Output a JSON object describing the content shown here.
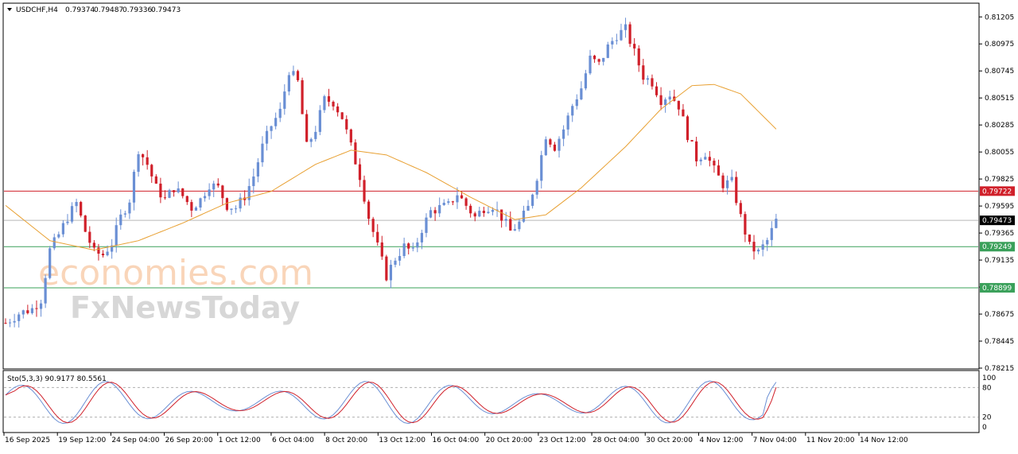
{
  "header": {
    "symbol": "USDCHF,H4",
    "open": "0.79374",
    "high": "0.79487",
    "low": "0.79336",
    "close": "0.79473"
  },
  "watermark": {
    "line1": "economies.com",
    "line2": "FxNewsToday"
  },
  "colors": {
    "bull": "#6a8fd4",
    "bear": "#d0202a",
    "ma": "#e8a032",
    "resistance": "#d0202a",
    "support": "#3aa05a",
    "current": "#000000",
    "stoch_main": "#6a8fd4",
    "stoch_signal": "#d0202a",
    "grid_border": "#000000"
  },
  "chart_data": [
    {
      "type": "candlestick",
      "symbol": "USDCHF",
      "timeframe": "H4",
      "ylim": [
        0.78215,
        0.81315
      ],
      "y_ticks": [
        "0.81205",
        "0.80975",
        "0.80745",
        "0.80515",
        "0.80285",
        "0.80055",
        "0.79825",
        "0.79595",
        "0.79365",
        "0.79135",
        "0.78905",
        "0.78675",
        "0.78445",
        "0.78215"
      ],
      "x_ticks": [
        "16 Sep 2025",
        "19 Sep 12:00",
        "24 Sep 04:00",
        "26 Sep 20:00",
        "1 Oct 12:00",
        "6 Oct 04:00",
        "8 Oct 20:00",
        "13 Oct 12:00",
        "16 Oct 04:00",
        "20 Oct 20:00",
        "23 Oct 12:00",
        "28 Oct 04:00",
        "30 Oct 20:00",
        "4 Nov 12:00",
        "7 Nov 04:00",
        "11 Nov 20:00",
        "14 Nov 12:00"
      ],
      "close_path": [
        [
          0,
          0.786
        ],
        [
          3,
          0.7868
        ],
        [
          6,
          0.7872
        ],
        [
          8,
          0.788
        ],
        [
          10,
          0.7922
        ],
        [
          12,
          0.7935
        ],
        [
          14,
          0.795
        ],
        [
          16,
          0.7962
        ],
        [
          18,
          0.7938
        ],
        [
          20,
          0.792
        ],
        [
          22,
          0.7918
        ],
        [
          24,
          0.7928
        ],
        [
          26,
          0.795
        ],
        [
          28,
          0.7965
        ],
        [
          30,
          0.8008
        ],
        [
          32,
          0.7995
        ],
        [
          34,
          0.7975
        ],
        [
          36,
          0.7965
        ],
        [
          38,
          0.7975
        ],
        [
          40,
          0.7968
        ],
        [
          42,
          0.7958
        ],
        [
          44,
          0.7965
        ],
        [
          46,
          0.7978
        ],
        [
          48,
          0.7975
        ],
        [
          50,
          0.796
        ],
        [
          52,
          0.7958
        ],
        [
          54,
          0.7968
        ],
        [
          56,
          0.7985
        ],
        [
          58,
          0.801
        ],
        [
          60,
          0.8028
        ],
        [
          62,
          0.804
        ],
        [
          64,
          0.8075
        ],
        [
          66,
          0.8065
        ],
        [
          68,
          0.801
        ],
        [
          70,
          0.8025
        ],
        [
          72,
          0.805
        ],
        [
          74,
          0.8048
        ],
        [
          76,
          0.8035
        ],
        [
          78,
          0.801
        ],
        [
          80,
          0.7985
        ],
        [
          82,
          0.795
        ],
        [
          84,
          0.7925
        ],
        [
          86,
          0.79
        ],
        [
          88,
          0.7915
        ],
        [
          90,
          0.7925
        ],
        [
          92,
          0.792
        ],
        [
          94,
          0.794
        ],
        [
          96,
          0.7955
        ],
        [
          98,
          0.7958
        ],
        [
          100,
          0.796
        ],
        [
          102,
          0.797
        ],
        [
          104,
          0.796
        ],
        [
          106,
          0.795
        ],
        [
          108,
          0.7958
        ],
        [
          110,
          0.796
        ],
        [
          112,
          0.795
        ],
        [
          114,
          0.7938
        ],
        [
          116,
          0.7945
        ],
        [
          118,
          0.7958
        ],
        [
          120,
          0.7985
        ],
        [
          122,
          0.802
        ],
        [
          124,
          0.801
        ],
        [
          126,
          0.8025
        ],
        [
          128,
          0.8045
        ],
        [
          130,
          0.806
        ],
        [
          132,
          0.8085
        ],
        [
          134,
          0.808
        ],
        [
          136,
          0.8095
        ],
        [
          138,
          0.8105
        ],
        [
          140,
          0.811
        ],
        [
          142,
          0.809
        ],
        [
          144,
          0.807
        ],
        [
          146,
          0.8065
        ],
        [
          148,
          0.805
        ],
        [
          150,
          0.8055
        ],
        [
          152,
          0.8045
        ],
        [
          154,
          0.802
        ],
        [
          156,
          0.8
        ],
        [
          158,
          0.8005
        ],
        [
          160,
          0.799
        ],
        [
          162,
          0.7978
        ],
        [
          164,
          0.798
        ],
        [
          166,
          0.795
        ],
        [
          168,
          0.7925
        ],
        [
          170,
          0.792
        ],
        [
          172,
          0.793
        ],
        [
          174,
          0.7947
        ]
      ],
      "moving_average": [
        [
          0,
          0.796
        ],
        [
          10,
          0.793
        ],
        [
          20,
          0.7922
        ],
        [
          30,
          0.793
        ],
        [
          40,
          0.7945
        ],
        [
          50,
          0.7962
        ],
        [
          60,
          0.7972
        ],
        [
          70,
          0.7995
        ],
        [
          78,
          0.8007
        ],
        [
          86,
          0.8003
        ],
        [
          95,
          0.7988
        ],
        [
          105,
          0.7967
        ],
        [
          115,
          0.7948
        ],
        [
          122,
          0.7952
        ],
        [
          130,
          0.7975
        ],
        [
          140,
          0.801
        ],
        [
          148,
          0.8042
        ],
        [
          155,
          0.8062
        ],
        [
          160,
          0.8063
        ],
        [
          166,
          0.8055
        ],
        [
          174,
          0.8025
        ]
      ],
      "horizontal_lines": [
        {
          "label": "0.79722",
          "value": 0.79722,
          "kind": "resistance"
        },
        {
          "label": "0.79473",
          "value": 0.79473,
          "kind": "current"
        },
        {
          "label": "0.79249",
          "value": 0.79249,
          "kind": "support"
        },
        {
          "label": "0.78899",
          "value": 0.78899,
          "kind": "support"
        }
      ]
    },
    {
      "type": "line",
      "indicator": "stochastic",
      "label": "Sto(5,3,3) 90.9177 80.5561",
      "ylim": [
        0,
        100
      ],
      "y_ticks": [
        "100",
        "80",
        "20",
        "0"
      ],
      "levels": [
        80,
        20
      ]
    }
  ]
}
